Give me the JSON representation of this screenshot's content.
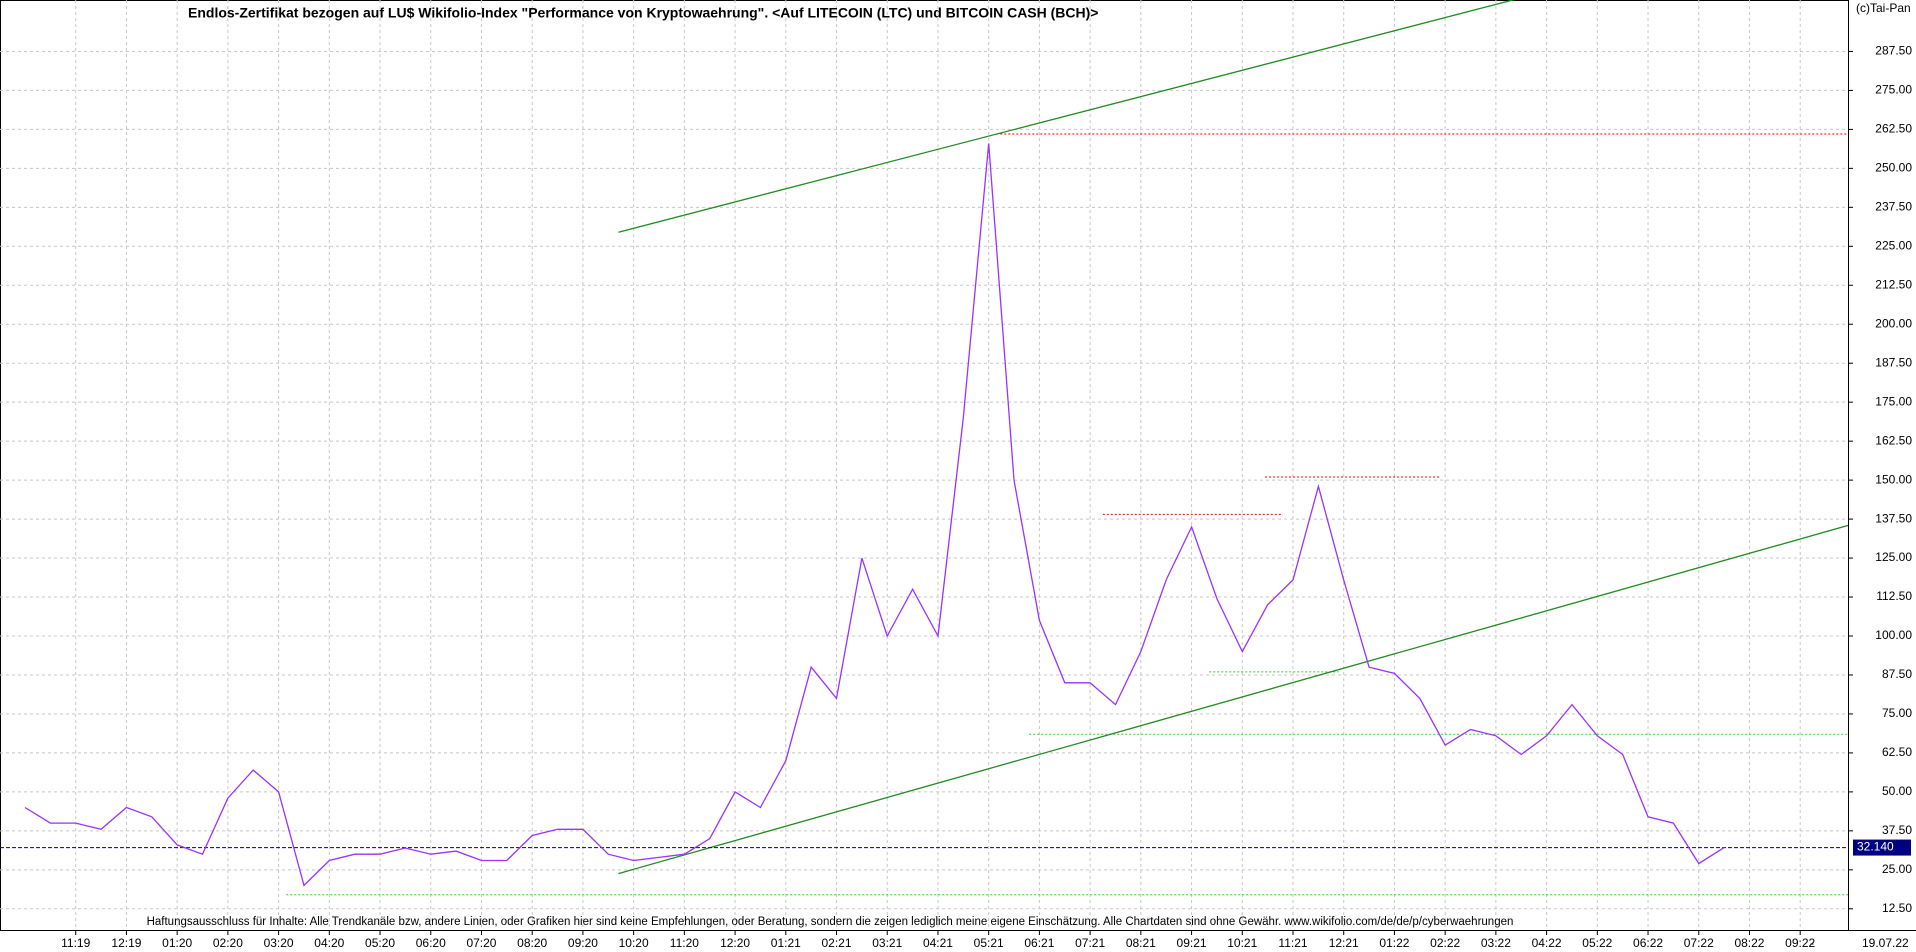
{
  "chart_data": {
    "type": "line",
    "title": "Endlos-Zertifikat bezogen auf LU$ Wikifolio-Index \"Performance von Kryptowaehrung\". <Auf LITECOIN (LTC) und BITCOIN CASH (BCH)>",
    "copyright": "(c)Tai-Pan",
    "disclaimer": "Haftungsausschluss für Inhalte: Alle Trendkanäle bzw, andere Linien, oder Grafiken hier sind keine Empfehlungen, oder Beratung, sondern die zeigen lediglich meine eigene Einschätzung. Alle Chartdaten sind ohne Gewähr.  www.wikifolio.com/de/de/p/cyberwaehrungen",
    "x_end_label": "19.07.22",
    "axis_corner": "-",
    "categories": [
      null,
      null,
      "11:19",
      null,
      "12:19",
      null,
      "01:20",
      null,
      "02:20",
      null,
      "03:20",
      null,
      "04:20",
      null,
      "05:20",
      null,
      "06:20",
      null,
      "07:20",
      null,
      "08:20",
      null,
      "09:20",
      null,
      "10:20",
      null,
      "11:20",
      null,
      "12:20",
      null,
      "01:21",
      null,
      "02:21",
      null,
      "03:21",
      null,
      "04:21",
      null,
      "05:21",
      null,
      "06:21",
      null,
      "07:21",
      null,
      "08:21",
      null,
      "09:21",
      null,
      "10:21",
      null,
      "11:21",
      null,
      "12:21",
      null,
      "01:22",
      null,
      "02:22",
      null,
      "03:22",
      null,
      "04:22",
      null,
      "05:22",
      null,
      "06:22",
      null,
      "07:22",
      null,
      "08:22",
      null,
      "09:22",
      null
    ],
    "series": [
      {
        "color": "#9933ff",
        "values": [
          45,
          40,
          40,
          38,
          45,
          42,
          33,
          30,
          48,
          57,
          50,
          20,
          28,
          30,
          30,
          32,
          30,
          31,
          28,
          28,
          36,
          38,
          38,
          30,
          28,
          29,
          30,
          35,
          50,
          45,
          60,
          90,
          80,
          125,
          100,
          115,
          100,
          170,
          258,
          150,
          105,
          85,
          85,
          78,
          95,
          118,
          135,
          112,
          95,
          110,
          118,
          148,
          118,
          90,
          88,
          80,
          65,
          70,
          68,
          62,
          68,
          78,
          68,
          62,
          42,
          40,
          27,
          32.14,
          null,
          null,
          null,
          null
        ]
      }
    ],
    "ylim": [
      5.7,
      304
    ],
    "yticks": [
      {
        "value": 12.5,
        "label": "12.50"
      },
      {
        "value": 25,
        "label": "25.00"
      },
      {
        "value": 37.5,
        "label": "37.50"
      },
      {
        "value": 50,
        "label": "50.00"
      },
      {
        "value": 62.5,
        "label": "62.50"
      },
      {
        "value": 75,
        "label": "75.00"
      },
      {
        "value": 87.5,
        "label": "87.50"
      },
      {
        "value": 100,
        "label": "100.00"
      },
      {
        "value": 112.5,
        "label": "112.50"
      },
      {
        "value": 125,
        "label": "125.00"
      },
      {
        "value": 137.5,
        "label": "137.50"
      },
      {
        "value": 150,
        "label": "150.00"
      },
      {
        "value": 162.5,
        "label": "162.50"
      },
      {
        "value": 175,
        "label": "175.00"
      },
      {
        "value": 187.5,
        "label": "187.50"
      },
      {
        "value": 200,
        "label": "200.00"
      },
      {
        "value": 212.5,
        "label": "212.50"
      },
      {
        "value": 225,
        "label": "225.00"
      },
      {
        "value": 237.5,
        "label": "237.50"
      },
      {
        "value": 250,
        "label": "250.00"
      },
      {
        "value": 262.5,
        "label": "262.50"
      },
      {
        "value": 275,
        "label": "275.00"
      },
      {
        "value": 287.5,
        "label": "287.50"
      }
    ],
    "grid": true,
    "trend_lines": [
      {
        "from": [
          23.4,
          229.5
        ],
        "to": [
          59,
          304.7
        ],
        "color": "#228b22"
      },
      {
        "from": [
          23.4,
          23.8
        ],
        "to": [
          72.9,
          137.8
        ],
        "color": "#228b22"
      }
    ],
    "levels": [
      {
        "value": 261,
        "from": 38.3,
        "to": 72.9,
        "color": "#ff0000"
      },
      {
        "value": 139,
        "from": 42.5,
        "to": 49.6,
        "color": "#ff0000"
      },
      {
        "value": 151,
        "from": 48.9,
        "to": 55.8,
        "color": "#ff0000"
      },
      {
        "value": 88.5,
        "from": 46.7,
        "to": 51.8,
        "color": "#33cc33"
      },
      {
        "value": 68.5,
        "from": 39.6,
        "to": 72.9,
        "color": "#33cc33"
      },
      {
        "value": 17,
        "from": 10.3,
        "to": 72.9,
        "color": "#33cc33"
      }
    ],
    "last_price": {
      "value": 32.14,
      "label": "32.140",
      "color": "#000080"
    }
  }
}
